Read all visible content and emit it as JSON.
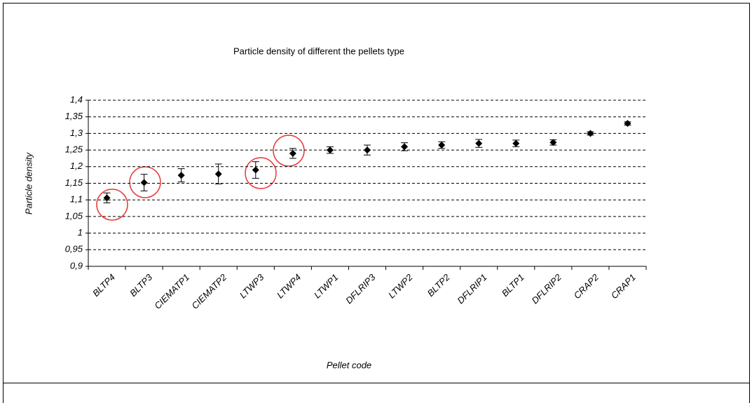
{
  "chart_data": {
    "type": "errorbar",
    "title": "Particle density of different the pellets type",
    "x_label": "Pellet code",
    "y_label": "Particle density",
    "categories": [
      "BLTP4",
      "BLTP3",
      "CIEMATP1",
      "CIEMATP2",
      "LTWP3",
      "LTWP4",
      "LTWP1",
      "DFLRIP3",
      "LTWP2",
      "BLTP2",
      "DFLRIP1",
      "BLTP1",
      "DFLRIP2",
      "CRAP2",
      "CRAP1"
    ],
    "values": [
      1.106,
      1.152,
      1.174,
      1.178,
      1.19,
      1.24,
      1.25,
      1.25,
      1.26,
      1.265,
      1.27,
      1.27,
      1.273,
      1.3,
      1.33
    ],
    "errors": [
      0.015,
      0.025,
      0.02,
      0.03,
      0.025,
      0.015,
      0.01,
      0.015,
      0.012,
      0.01,
      0.012,
      0.01,
      0.008,
      0.005,
      0.005
    ],
    "color": "#000000",
    "ylim": [
      0.9,
      1.4
    ],
    "yticks": [
      {
        "value": 0.9,
        "label": "0,9"
      },
      {
        "value": 0.95,
        "label": "0,95"
      },
      1,
      {
        "value": 1.05,
        "label": "1,05"
      },
      {
        "value": 1.1,
        "label": "1,1"
      },
      {
        "value": 1.15,
        "label": "1,15"
      },
      {
        "value": 1.2,
        "label": "1,2"
      },
      {
        "value": 1.25,
        "label": "1,25"
      },
      {
        "value": 1.3,
        "label": "1,3"
      },
      {
        "value": 1.35,
        "label": "1,35"
      },
      {
        "value": 1.4,
        "label": "1,4"
      }
    ],
    "grid": true
  }
}
